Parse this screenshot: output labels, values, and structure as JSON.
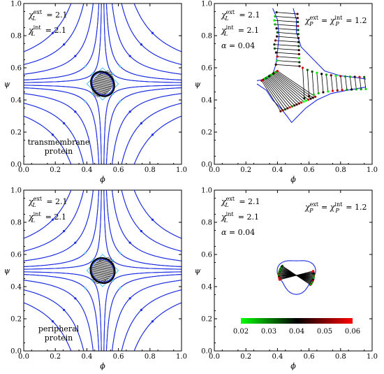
{
  "chart_data": [
    {
      "panel": "top-left",
      "type": "line",
      "xlabel": "ϕ",
      "ylabel": "ψ",
      "xlim": [
        0,
        1
      ],
      "ylim": [
        0,
        1
      ],
      "xticks": [
        "0.0",
        "0.2",
        "0.4",
        "0.6",
        "0.8",
        "1.0"
      ],
      "yticks": [
        "0.0",
        "0.2",
        "0.4",
        "0.6",
        "0.8",
        "1.0"
      ],
      "annotations": [
        {
          "sym": "χ",
          "sub": "L",
          "sup": "ext",
          "val": "= 2.1"
        },
        {
          "sym": "χ",
          "sub": "L",
          "sup": "int",
          "val": "= 2.1"
        }
      ],
      "label_lines": [
        "transmembrane",
        "protein"
      ],
      "droplet": {
        "cx": 0.5,
        "cy": 0.5,
        "rx": 0.07,
        "ry": 0.08
      },
      "hyperbola_offsets": [
        0.004,
        0.012,
        0.03,
        0.06,
        0.1
      ]
    },
    {
      "panel": "top-right",
      "type": "line",
      "xlabel": "ϕ",
      "ylabel": "ψ",
      "xlim": [
        0,
        1
      ],
      "ylim": [
        0,
        1
      ],
      "xticks": [
        "0.0",
        "0.2",
        "0.4",
        "0.6",
        "0.8",
        "1.0"
      ],
      "yticks": [
        "0.0",
        "0.2",
        "0.4",
        "0.6",
        "0.8",
        "1.0"
      ],
      "annotations": [
        {
          "sym": "χ",
          "sub": "L",
          "sup": "ext",
          "val": "= 2.1"
        },
        {
          "sym": "χ",
          "sub": "L",
          "sup": "int",
          "val": "= 2.1"
        },
        {
          "sym": "α",
          "sub": "",
          "sup": "",
          "val": "= 0.04"
        }
      ],
      "top_annotation": {
        "lhs_sub": "P",
        "lhs_sup": "ext",
        "rhs_sub": "P",
        "rhs_sup": "int",
        "val": "= 1.2"
      },
      "shape": "tripod"
    },
    {
      "panel": "bottom-left",
      "type": "line",
      "xlabel": "ϕ",
      "ylabel": "ψ",
      "xlim": [
        0,
        1
      ],
      "ylim": [
        0,
        1
      ],
      "xticks": [
        "0.0",
        "0.2",
        "0.4",
        "0.6",
        "0.8",
        "1.0"
      ],
      "yticks": [
        "0.0",
        "0.2",
        "0.4",
        "0.6",
        "0.8",
        "1.0"
      ],
      "annotations": [
        {
          "sym": "χ",
          "sub": "L",
          "sup": "ext",
          "val": "= 2.1"
        },
        {
          "sym": "χ",
          "sub": "L",
          "sup": "int",
          "val": "= 2.1"
        }
      ],
      "label_lines": [
        "peripheral",
        "protein"
      ],
      "droplet": {
        "cx": 0.5,
        "cy": 0.5,
        "rx": 0.075,
        "ry": 0.08
      },
      "hyperbola_offsets": [
        0.004,
        0.012,
        0.03,
        0.06,
        0.1
      ]
    },
    {
      "panel": "bottom-right",
      "type": "line",
      "xlabel": "ϕ",
      "ylabel": "ψ",
      "xlim": [
        0,
        1
      ],
      "ylim": [
        0,
        1
      ],
      "xticks": [
        "0.0",
        "0.2",
        "0.4",
        "0.6",
        "0.8",
        "1.0"
      ],
      "yticks": [
        "0.0",
        "0.2",
        "0.4",
        "0.6",
        "0.8",
        "1.0"
      ],
      "annotations": [
        {
          "sym": "χ",
          "sub": "L",
          "sup": "ext",
          "val": "= 2.1"
        },
        {
          "sym": "χ",
          "sub": "L",
          "sup": "int",
          "val": "= 2.1"
        },
        {
          "sym": "α",
          "sub": "",
          "sup": "",
          "val": "= 0.04"
        }
      ],
      "top_annotation": {
        "lhs_sub": "P",
        "lhs_sup": "ext",
        "rhs_sub": "P",
        "rhs_sup": "int",
        "val": "= 1.2"
      },
      "shape": "blob",
      "colorbar": {
        "ticks": [
          "0.02",
          "0.03",
          "0.04",
          "0.05",
          "0.06"
        ],
        "range": [
          0.02,
          0.06
        ],
        "colors": [
          "#00ff00",
          "#000000",
          "#ff0000"
        ]
      }
    }
  ],
  "colors": {
    "curve": "#1a2be0",
    "highlight": "#5fc8ff",
    "tie": "#000000"
  }
}
